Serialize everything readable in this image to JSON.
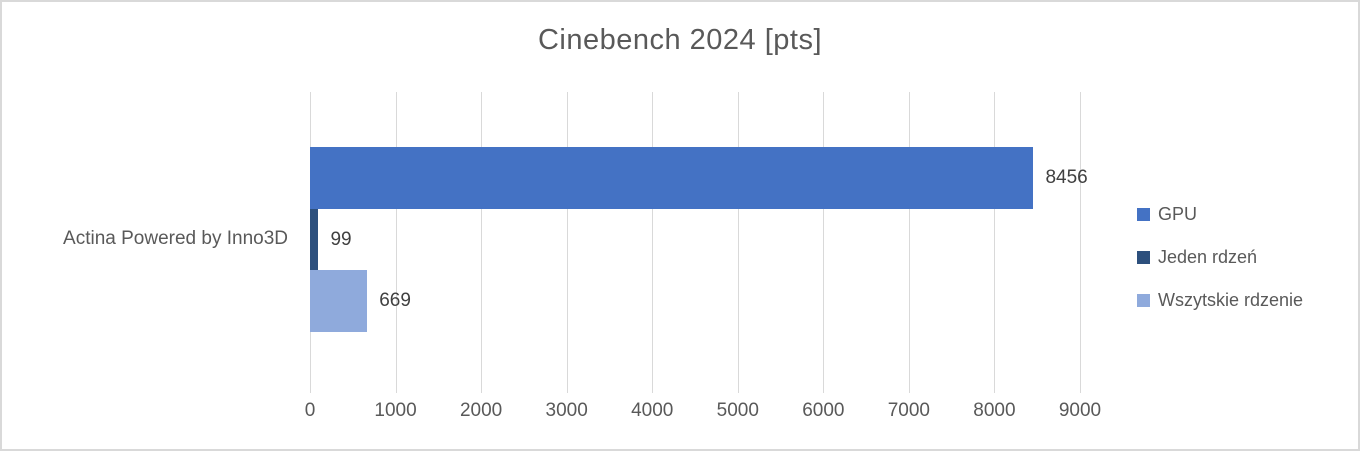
{
  "chart_data": {
    "type": "bar",
    "orientation": "horizontal",
    "title": "Cinebench 2024 [pts]",
    "categories": [
      "Actina Powered by Inno3D"
    ],
    "series": [
      {
        "name": "GPU",
        "values": [
          8456
        ],
        "color": "#4472C4"
      },
      {
        "name": "Jeden rdzeń",
        "values": [
          99
        ],
        "color": "#2D507D"
      },
      {
        "name": "Wszytskie rdzenie",
        "values": [
          669
        ],
        "color": "#8FAADC"
      }
    ],
    "data_labels": [
      8456,
      99,
      669
    ],
    "xlim": [
      0,
      9000
    ],
    "x_ticks": [
      0,
      1000,
      2000,
      3000,
      4000,
      5000,
      6000,
      7000,
      8000,
      9000
    ],
    "xlabel": "",
    "ylabel": "",
    "grid": true,
    "gridline_color": "#D9D9D9",
    "legend_position": "right",
    "title_color": "#595959",
    "axis_label_color": "#595959",
    "data_label_color": "#404040",
    "background_color": "#FFFFFF",
    "border_color": "#D9D9D9"
  }
}
